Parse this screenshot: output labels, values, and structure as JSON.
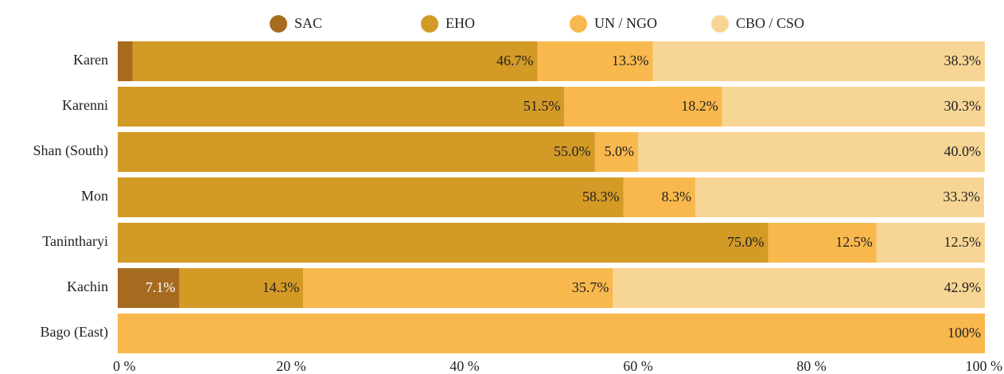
{
  "chart_data": {
    "type": "stacked-bar-horizontal",
    "categories": [
      "Karen",
      "Karenni",
      "Shan (South)",
      "Mon",
      "Tanintharyi",
      "Kachin",
      "Bago (East)"
    ],
    "series": [
      {
        "name": "SAC",
        "color": "#a66b1e",
        "values": [
          1.7,
          0,
          0,
          0,
          0,
          7.1,
          0
        ],
        "value_labels": [
          null,
          null,
          null,
          null,
          null,
          "7.1%",
          null
        ]
      },
      {
        "name": "EHO",
        "color": "#d49a26",
        "values": [
          46.7,
          51.5,
          55.0,
          58.3,
          75.0,
          14.3,
          0
        ],
        "value_labels": [
          "46.7%",
          "51.5%",
          "55.0%",
          "58.3%",
          "75.0%",
          "14.3%",
          null
        ]
      },
      {
        "name": "UN / NGO",
        "color": "#f9b84e",
        "values": [
          13.3,
          18.2,
          5.0,
          8.3,
          12.5,
          35.7,
          100
        ],
        "value_labels": [
          "13.3%",
          "18.2%",
          "5.0%",
          "8.3%",
          "12.5%",
          "35.7%",
          "100%"
        ]
      },
      {
        "name": "CBO / CSO",
        "color": "#f7d594",
        "values": [
          38.3,
          30.3,
          40.0,
          33.3,
          12.5,
          42.9,
          0
        ],
        "value_labels": [
          "38.3%",
          "30.3%",
          "40.0%",
          "33.3%",
          "12.5%",
          "42.9%",
          null
        ]
      }
    ],
    "xlim": [
      0,
      100
    ],
    "xticks": [
      {
        "value": 0,
        "label": "0 %"
      },
      {
        "value": 20,
        "label": "20 %"
      },
      {
        "value": 40,
        "label": "40 %"
      },
      {
        "value": 60,
        "label": "60 %"
      },
      {
        "value": 80,
        "label": "80 %"
      },
      {
        "value": 100,
        "label": "100 %"
      }
    ],
    "legend": "top"
  }
}
